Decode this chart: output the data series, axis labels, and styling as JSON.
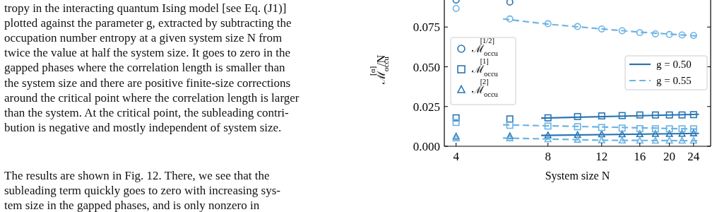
{
  "chart_data": {
    "type": "scatter",
    "xlabel": "System size N",
    "ylabel": "ℳ$_{occu}$$^{[α]}$/N",
    "log": "x",
    "xlim": [
      3.66,
      27.3
    ],
    "xticks": [
      4,
      8,
      12,
      16,
      20,
      24
    ],
    "ylim": [
      0,
      0.092
    ],
    "yticks": [
      {
        "value": 0,
        "label": "0.000"
      },
      {
        "value": 0.025,
        "label": "0.025"
      },
      {
        "value": 0.05,
        "label": "0.050"
      },
      {
        "value": 0.075,
        "label": "0.075"
      }
    ],
    "legend": "right",
    "grid": false,
    "annotations": [
      "tropy in the interacting quantum Ising model [see Eq. (J1)]",
      "plotted against the parameter g, extracted by subtracting the",
      "occupation number entropy at a given system size N from",
      "twice the value at half the system size. It goes to zero in the",
      "gapped phases where the correlation length is smaller than",
      "the system size and there are positive finite-size corrections",
      "around the critical point where the correlation length is larger",
      "than the system. At the critical point, the subleading contri-",
      "bution is negative and mostly independent of system size.",
      "The results are shown in Fig. 12. There, we see that the",
      "subleading term quickly goes to zero with increasing sys-",
      "tem size in the gapped phases, and is only nonzero in"
    ],
    "series": [
      {
        "name": "ℳ$_{occu}$$^{[1/2]}$",
        "marker": "circle",
        "color": "#2a75b3",
        "x": [
          4,
          6
        ],
        "values": [
          0.0919,
          0.0907
        ]
      },
      {
        "name": "ℳ$_{occu}$$^{[1]}$",
        "marker": "square",
        "color": "#2a75b3",
        "x": [
          4,
          6,
          8,
          10,
          12,
          14,
          16,
          18,
          20,
          22,
          24
        ],
        "values": [
          0.0179,
          0.0172,
          0.0179,
          0.0187,
          0.0191,
          0.0193,
          0.0197,
          0.0197,
          0.0197,
          0.0197,
          0.0199
        ]
      },
      {
        "name": "ℳ$_{occu}$$^{[2]}$",
        "marker": "triangle",
        "color": "#2a75b3",
        "x": [
          4,
          6,
          8,
          10,
          12,
          14,
          16,
          18,
          20,
          22,
          24
        ],
        "values": [
          0.0061,
          0.0063,
          0.0069,
          0.0071,
          0.0075,
          0.0075,
          0.0076,
          0.0077,
          0.0077,
          0.0078,
          0.0081
        ]
      },
      {
        "type": "scatter",
        "marker": "circle",
        "color": "#6cb4e4",
        "x": [
          4,
          6,
          8,
          10,
          12,
          14,
          16,
          18,
          20,
          22,
          24
        ],
        "values": [
          0.0867,
          0.0801,
          0.0771,
          0.0753,
          0.0738,
          0.0727,
          0.0715,
          0.0707,
          0.0703,
          0.07,
          0.0697
        ]
      },
      {
        "type": "scatter",
        "marker": "square",
        "color": "#6cb4e4",
        "x": [
          4,
          6,
          8,
          10,
          12,
          14,
          16,
          18,
          20,
          22,
          24
        ],
        "values": [
          0.015,
          0.0132,
          0.0127,
          0.0123,
          0.0118,
          0.0114,
          0.0111,
          0.011,
          0.011,
          0.011,
          0.011
        ]
      },
      {
        "type": "scatter",
        "marker": "triangle",
        "color": "#6cb4e4",
        "x": [
          4,
          6,
          8,
          10,
          12,
          14,
          16,
          18,
          20,
          22,
          24
        ],
        "values": [
          0.005,
          0.005,
          0.0044,
          0.0041,
          0.0037,
          0.0036,
          0.0035,
          0.0035,
          0.0035,
          0.0035,
          0.0035
        ]
      },
      {
        "type": "line",
        "name": "g = 0.50",
        "line_style": "solid",
        "color": "#2a75b3",
        "x": [
          7.6,
          25
        ],
        "values": [
          0.0177,
          0.0201
        ]
      },
      {
        "type": "line",
        "line_style": "solid",
        "color": "#2a75b3",
        "x": [
          7.6,
          25
        ],
        "values": [
          0.0068,
          0.0081
        ]
      },
      {
        "type": "line",
        "name": "g = 0.55",
        "line_style": "dashed",
        "color": "#6cb4e4",
        "x": [
          5.7,
          8,
          12,
          16,
          25
        ],
        "values": [
          0.0801,
          0.0768,
          0.0738,
          0.0718,
          0.0693
        ]
      },
      {
        "type": "line",
        "line_style": "dashed",
        "color": "#6cb4e4",
        "x": [
          5.7,
          25
        ],
        "values": [
          0.0135,
          0.0108
        ]
      },
      {
        "type": "line",
        "line_style": "dashed",
        "color": "#6cb4e4",
        "x": [
          5.7,
          12,
          25
        ],
        "values": [
          0.0052,
          0.0038,
          0.0035
        ]
      }
    ]
  }
}
